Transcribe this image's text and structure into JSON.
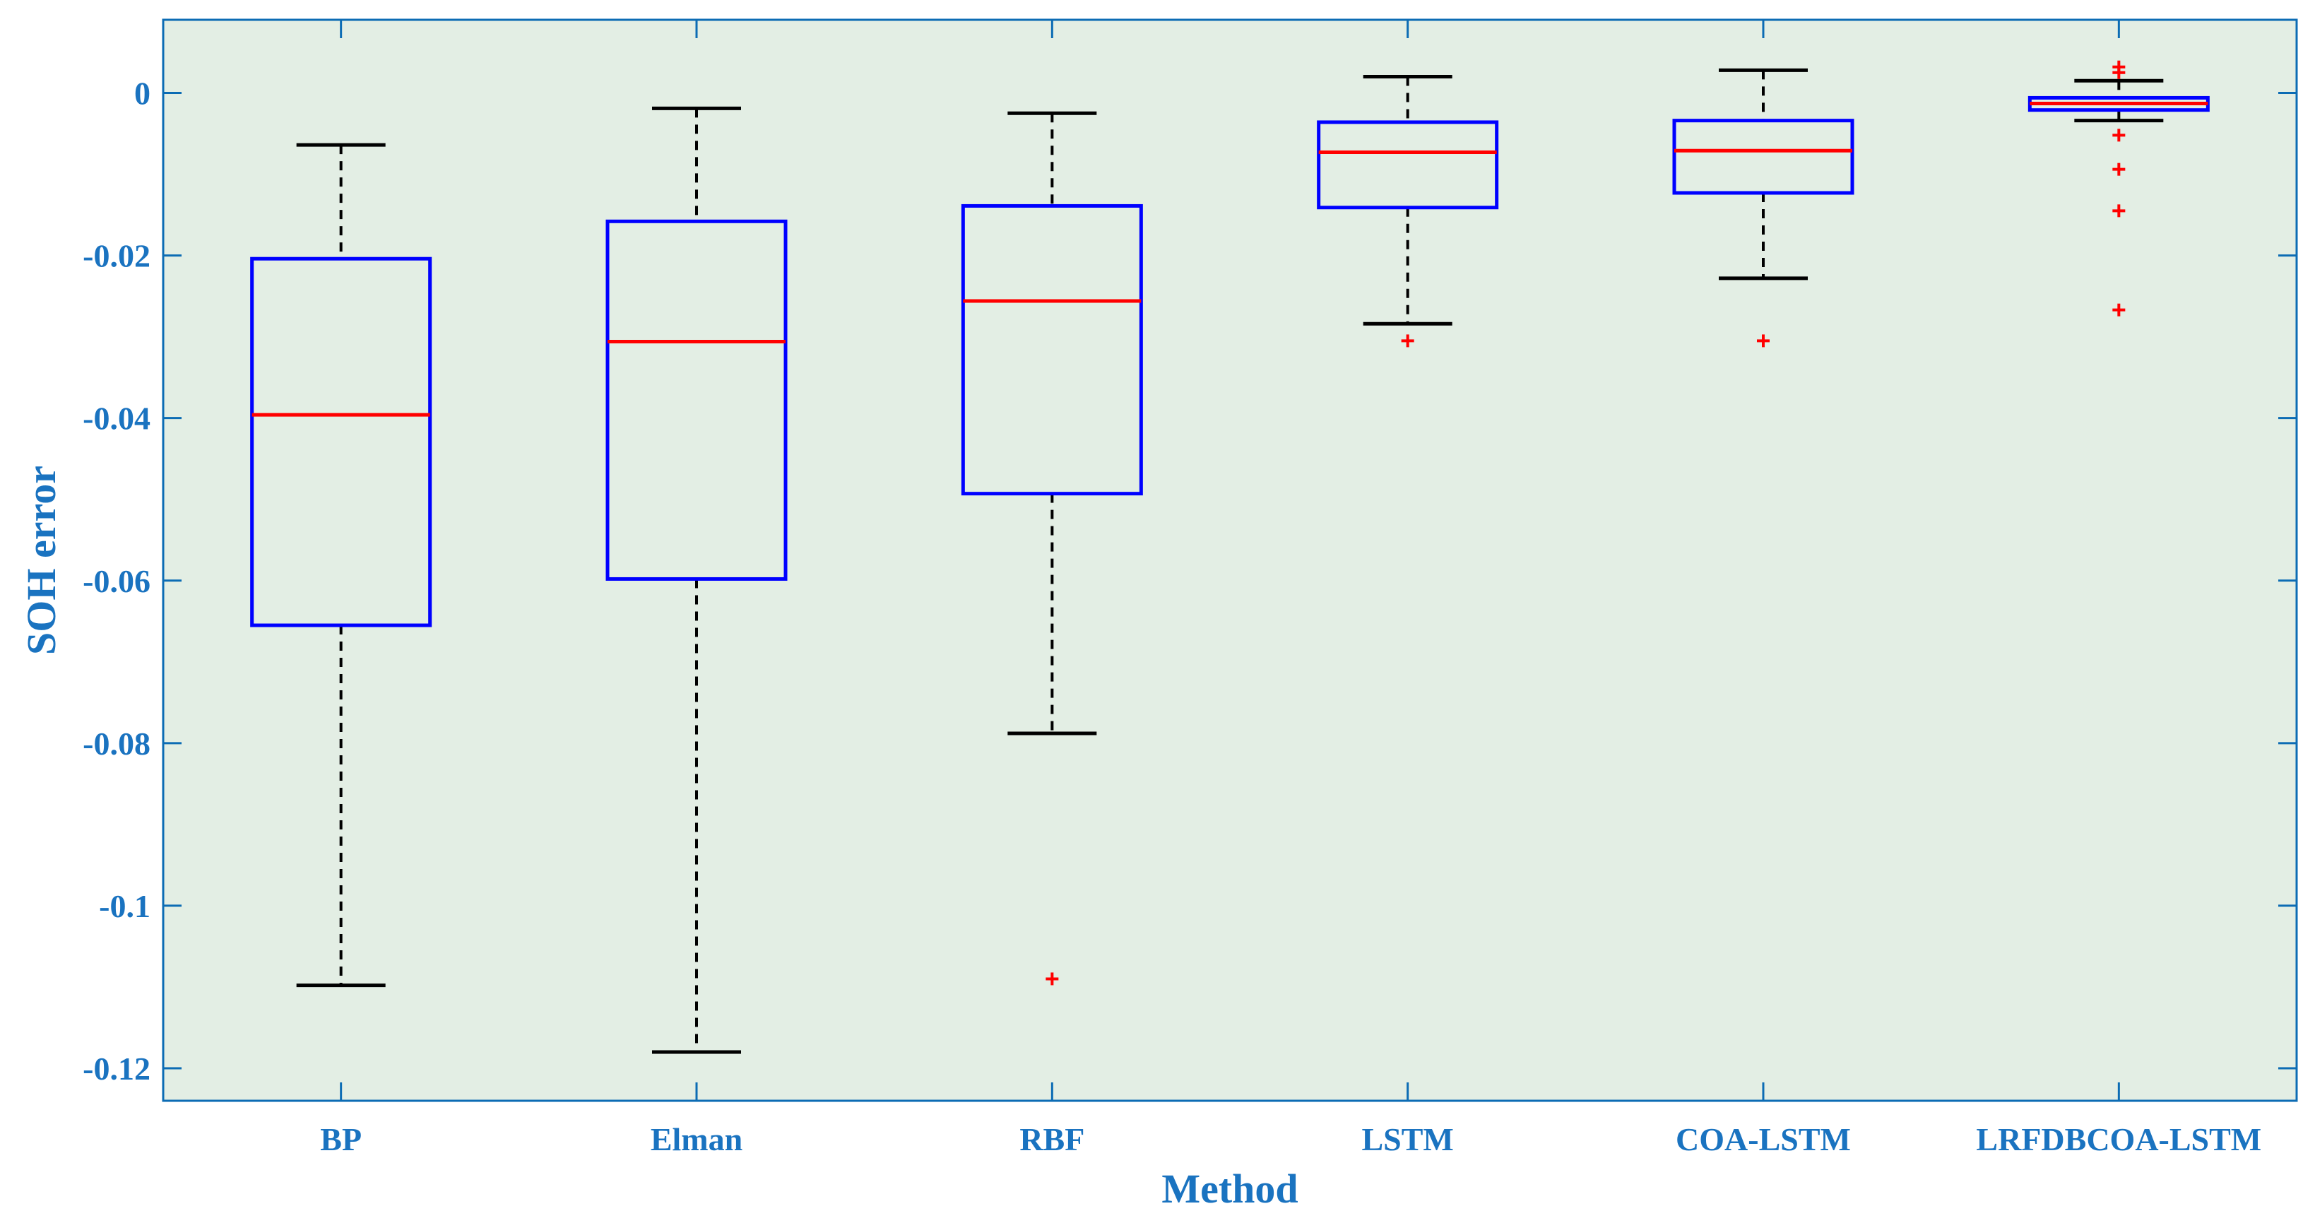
{
  "chart_data": {
    "type": "box",
    "title": "",
    "xlabel": "Method",
    "ylabel": "SOH error",
    "ylim": [
      -0.124,
      0.009
    ],
    "yticks": [
      0,
      -0.02,
      -0.04,
      -0.06,
      -0.08,
      -0.1,
      -0.12
    ],
    "ytick_labels": [
      "0",
      "-0.02",
      "-0.04",
      "-0.06",
      "-0.08",
      "-0.1",
      "-0.12"
    ],
    "grid": false,
    "categories": [
      "BP",
      "Elman",
      "RBF",
      "LSTM",
      "COA-LSTM",
      "LRFDBCOA-LSTM"
    ],
    "boxes": [
      {
        "name": "BP",
        "whisker_low": -0.1098,
        "q1": -0.0655,
        "median": -0.0396,
        "q3": -0.0204,
        "whisker_high": -0.0064,
        "outliers": []
      },
      {
        "name": "Elman",
        "whisker_low": -0.118,
        "q1": -0.0598,
        "median": -0.0306,
        "q3": -0.0158,
        "whisker_high": -0.0019,
        "outliers": []
      },
      {
        "name": "RBF",
        "whisker_low": -0.0788,
        "q1": -0.0493,
        "median": -0.0256,
        "q3": -0.0139,
        "whisker_high": -0.0025,
        "outliers": [
          -0.109
        ]
      },
      {
        "name": "LSTM",
        "whisker_low": -0.0284,
        "q1": -0.0141,
        "median": -0.0073,
        "q3": -0.0036,
        "whisker_high": 0.002,
        "outliers": [
          -0.0305
        ]
      },
      {
        "name": "COA-LSTM",
        "whisker_low": -0.0228,
        "q1": -0.0123,
        "median": -0.0071,
        "q3": -0.0034,
        "whisker_high": 0.0028,
        "outliers": [
          -0.0305
        ]
      },
      {
        "name": "LRFDBCOA-LSTM",
        "whisker_low": -0.0034,
        "q1": -0.0021,
        "median": -0.0013,
        "q3": -0.0006,
        "whisker_high": 0.0015,
        "outliers": [
          0.0032,
          0.0025,
          -0.0052,
          -0.0094,
          -0.0145,
          -0.0267
        ]
      }
    ],
    "colors": {
      "plot_background": "#e3eee4",
      "axis": "#0c6cb4",
      "box": "#0000ff",
      "median": "#ff0000",
      "whisker": "#000000",
      "outlier": "#ff0000",
      "label_text": "#1a73c0"
    }
  }
}
